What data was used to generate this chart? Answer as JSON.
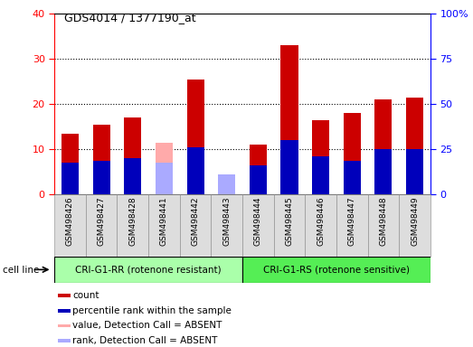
{
  "title": "GDS4014 / 1377190_at",
  "samples": [
    "GSM498426",
    "GSM498427",
    "GSM498428",
    "GSM498441",
    "GSM498442",
    "GSM498443",
    "GSM498444",
    "GSM498445",
    "GSM498446",
    "GSM498447",
    "GSM498448",
    "GSM498449"
  ],
  "count_values": [
    13.5,
    15.5,
    17.0,
    0,
    25.5,
    0,
    11.0,
    33.0,
    16.5,
    18.0,
    21.0,
    21.5
  ],
  "rank_values": [
    7.0,
    7.5,
    8.0,
    0,
    10.5,
    0,
    6.5,
    12.0,
    8.5,
    7.5,
    10.0,
    10.0
  ],
  "absent_count_values": [
    0,
    0,
    0,
    11.5,
    0,
    0,
    0,
    0,
    0,
    0,
    0,
    0
  ],
  "absent_rank_values": [
    0,
    0,
    0,
    7.0,
    0,
    4.5,
    0,
    0,
    0,
    0,
    0,
    0
  ],
  "group1_count": 6,
  "group2_count": 6,
  "group1_label": "CRI-G1-RR (rotenone resistant)",
  "group2_label": "CRI-G1-RS (rotenone sensitive)",
  "group_label": "cell line",
  "ylim": [
    0,
    40
  ],
  "y2lim": [
    0,
    100
  ],
  "yticks": [
    0,
    10,
    20,
    30,
    40
  ],
  "ytick_labels": [
    "0",
    "10",
    "20",
    "30",
    "40"
  ],
  "y2ticks": [
    0,
    25,
    50,
    75,
    100
  ],
  "y2tick_labels": [
    "0",
    "25",
    "50",
    "75",
    "100%"
  ],
  "bar_color_red": "#cc0000",
  "bar_color_blue": "#0000bb",
  "bar_color_pink": "#ffaaaa",
  "bar_color_lightblue": "#aaaaff",
  "bar_width": 0.55,
  "blue_bar_width": 0.55,
  "background_color": "#ffffff",
  "plot_bg_color": "#ffffff",
  "group1_bg": "#aaffaa",
  "group2_bg": "#55ee55",
  "tick_bg": "#dddddd",
  "legend_items": [
    {
      "color": "#cc0000",
      "label": "count"
    },
    {
      "color": "#0000bb",
      "label": "percentile rank within the sample"
    },
    {
      "color": "#ffaaaa",
      "label": "value, Detection Call = ABSENT"
    },
    {
      "color": "#aaaaff",
      "label": "rank, Detection Call = ABSENT"
    }
  ]
}
